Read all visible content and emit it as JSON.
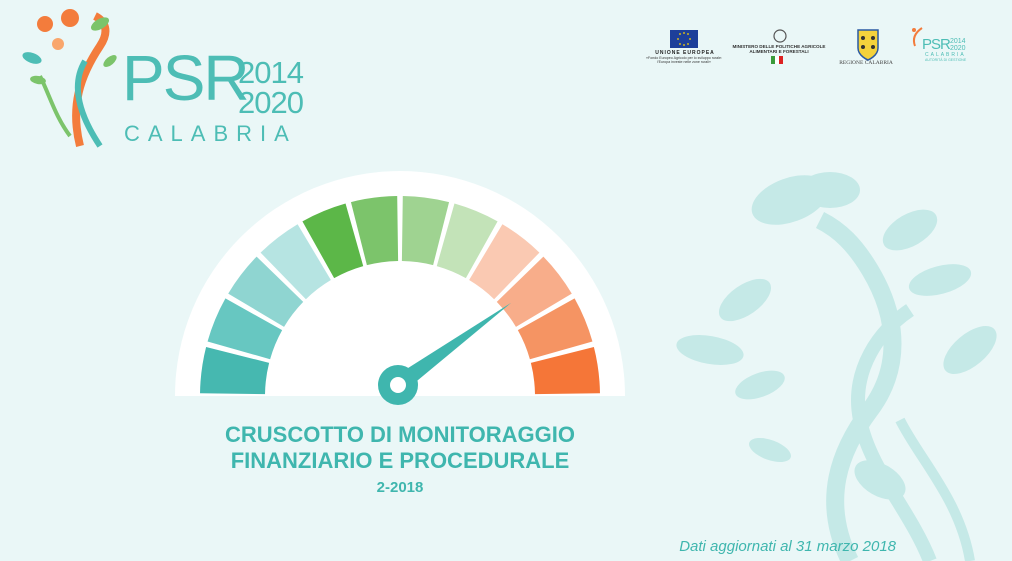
{
  "header": {
    "logo": {
      "mark": "PSR",
      "years": [
        "2014",
        "2020"
      ],
      "region": "CALABRIA"
    },
    "partner_logos": {
      "eu": {
        "label": "UNIONE EUROPEA",
        "subtext": [
          "«Fondo Europeo Agricolo per lo sviluppo rurale:",
          "l'Europa investe nelle zone rurali»"
        ]
      },
      "ministry": {
        "label": [
          "MINISTERO DELLE POLITICHE AGRICOLE",
          "ALIMENTARI E FORESTALI"
        ]
      },
      "region": {
        "label": "REGIONE CALABRIA"
      },
      "psr_small": {
        "mark": "PSR",
        "years": [
          "2014",
          "2020"
        ],
        "region": "CALABRIA",
        "tagline": "AUTORITÀ DI GESTIONE"
      }
    }
  },
  "main": {
    "title_lines": [
      "CRUSCOTTO DI MONITORAGGIO",
      "FINANZIARIO E PROCEDURALE"
    ],
    "subtitle": "2-2018"
  },
  "gauge": {
    "segment_colors": [
      "#46b8b0",
      "#67c7c1",
      "#8fd5d1",
      "#b6e4e2",
      "#5cb748",
      "#7cc46b",
      "#9fd391",
      "#c3e3b8",
      "#fac9b2",
      "#f8ad8a",
      "#f59463",
      "#f57638"
    ],
    "needle_color": "#3fb6ae",
    "needle_value": 0.8
  },
  "footer": {
    "updated": "Dati aggiornati al 31 marzo 2018"
  },
  "colors": {
    "background": "#eaf7f7",
    "accent": "#3fb6ae",
    "decor": "#c5e9e7"
  }
}
